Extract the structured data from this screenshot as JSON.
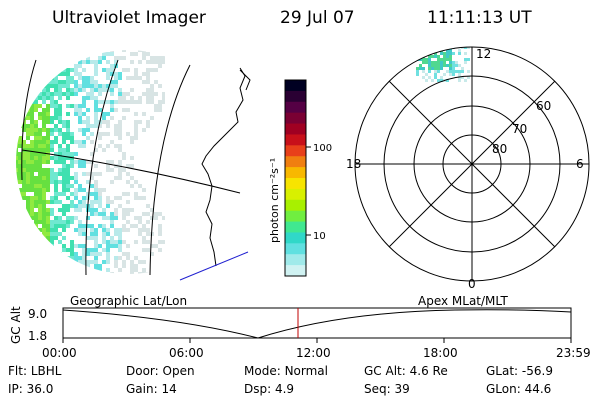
{
  "header": {
    "title": "Ultraviolet Imager",
    "date": "29 Jul 07",
    "time": "11:11:13 UT"
  },
  "colorbar": {
    "unit_label": "photon cm⁻²s⁻¹",
    "tick_labels": [
      "100",
      "10"
    ],
    "colors": [
      "#000022",
      "#2a0033",
      "#550044",
      "#7a0033",
      "#a00022",
      "#c8101a",
      "#e8401a",
      "#f07f10",
      "#f8b800",
      "#f7e400",
      "#d8f000",
      "#a8f000",
      "#70ee40",
      "#40e890",
      "#30d8c8",
      "#60e0e0",
      "#a0eaea",
      "#d0f2f2"
    ]
  },
  "polar_plot": {
    "top_label": "12",
    "bottom_label": "0",
    "left_label": "18",
    "right_label": "6",
    "lat_labels": [
      "60",
      "70",
      "80"
    ]
  },
  "timeline": {
    "left_label": "Geographic Lat/Lon",
    "right_label": "Apex MLat/MLT",
    "axis_title": "GC Alt",
    "y_ticks": [
      "9.0",
      "1.8"
    ],
    "x_ticks": [
      "00:00",
      "06:00",
      "12:00",
      "18:00",
      "23:59"
    ],
    "marker_color": "#c00000"
  },
  "status": {
    "row1": [
      {
        "label": "Flt:",
        "value": "LBHL"
      },
      {
        "label": "Door:",
        "value": "Open"
      },
      {
        "label": "Mode:",
        "value": "Normal"
      },
      {
        "label": "GC Alt:",
        "value": "4.6 Re"
      },
      {
        "label": "GLat:",
        "value": "-56.9"
      }
    ],
    "row2": [
      {
        "label": "IP:",
        "value": "36.0"
      },
      {
        "label": "Gain:",
        "value": "14"
      },
      {
        "label": "Dsp:",
        "value": "4.9"
      },
      {
        "label": "Seq:",
        "value": "39"
      },
      {
        "label": "GLon:",
        "value": "44.6"
      }
    ]
  }
}
